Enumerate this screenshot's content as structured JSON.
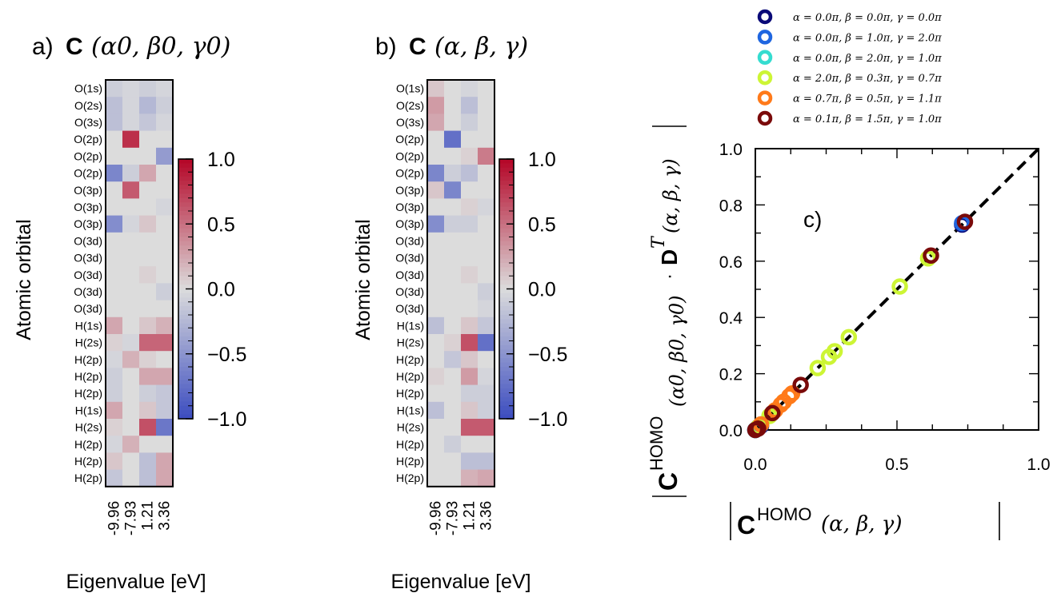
{
  "chart_data": [
    {
      "type": "heatmap",
      "panel_label": "a)",
      "title_bold": "C",
      "title_math": "(α0, β0, γ0)",
      "ylabel": "Atomic orbital",
      "xlabel": "Eigenvalue [eV]",
      "x_categories": [
        "-9.96",
        "-7.93",
        "1.21",
        "3.36"
      ],
      "y_categories": [
        "O(1s)",
        "O(2s)",
        "O(3s)",
        "O(2p)",
        "O(2p)",
        "O(2p)",
        "O(3p)",
        "O(3p)",
        "O(3p)",
        "O(3d)",
        "O(3d)",
        "O(3d)",
        "O(3d)",
        "O(3d)",
        "H(1s)",
        "H(2s)",
        "H(2p)",
        "H(2p)",
        "H(2p)",
        "H(1s)",
        "H(2s)",
        "H(2p)",
        "H(2p)",
        "H(2p)"
      ],
      "values": [
        [
          -0.1,
          -0.05,
          -0.1,
          -0.05
        ],
        [
          -0.2,
          -0.05,
          -0.25,
          -0.1
        ],
        [
          -0.2,
          -0.05,
          -0.15,
          -0.05
        ],
        [
          0.0,
          0.8,
          0.0,
          0.0
        ],
        [
          0.0,
          0.0,
          0.0,
          -0.45
        ],
        [
          -0.6,
          -0.1,
          0.25,
          0.0
        ],
        [
          0.0,
          0.6,
          0.0,
          0.0
        ],
        [
          0.0,
          0.0,
          0.0,
          -0.05
        ],
        [
          -0.55,
          -0.05,
          0.1,
          0.0
        ],
        [
          0.0,
          0.0,
          0.0,
          0.0
        ],
        [
          0.0,
          0.0,
          0.0,
          0.0
        ],
        [
          0.0,
          0.0,
          0.05,
          0.0
        ],
        [
          0.0,
          0.0,
          0.0,
          -0.1
        ],
        [
          0.0,
          0.0,
          0.0,
          0.0
        ],
        [
          0.25,
          0.0,
          0.1,
          0.2
        ],
        [
          0.05,
          -0.05,
          0.55,
          0.55
        ],
        [
          -0.05,
          0.2,
          0.05,
          0.0
        ],
        [
          -0.1,
          0.0,
          0.25,
          0.25
        ],
        [
          -0.1,
          0.0,
          -0.1,
          -0.15
        ],
        [
          0.25,
          0.0,
          0.1,
          -0.15
        ],
        [
          0.05,
          0.0,
          0.65,
          -0.7
        ],
        [
          -0.05,
          0.2,
          0.0,
          0.0
        ],
        [
          0.1,
          0.0,
          -0.2,
          0.25
        ],
        [
          -0.15,
          0.0,
          -0.2,
          0.25
        ]
      ],
      "colorbar": {
        "range": [
          -1.0,
          1.0
        ],
        "ticks": [
          "1.0",
          "0.5",
          "0.0",
          "−0.5",
          "−1.0"
        ]
      }
    },
    {
      "type": "heatmap",
      "panel_label": "b)",
      "title_bold": "C",
      "title_math": "(α, β, γ)",
      "ylabel": "Atomic orbital",
      "xlabel": "Eigenvalue [eV]",
      "x_categories": [
        "-9.96",
        "-7.93",
        "1.21",
        "3.36"
      ],
      "y_categories": [
        "O(1s)",
        "O(2s)",
        "O(3s)",
        "O(2p)",
        "O(2p)",
        "O(2p)",
        "O(3p)",
        "O(3p)",
        "O(3p)",
        "O(3d)",
        "O(3d)",
        "O(3d)",
        "O(3d)",
        "O(3d)",
        "H(1s)",
        "H(2s)",
        "H(2p)",
        "H(2p)",
        "H(2p)",
        "H(1s)",
        "H(2s)",
        "H(2p)",
        "H(2p)",
        "H(2p)"
      ],
      "values": [
        [
          0.1,
          0.0,
          -0.05,
          0.0
        ],
        [
          0.3,
          0.0,
          -0.2,
          0.0
        ],
        [
          0.25,
          0.0,
          -0.1,
          0.0
        ],
        [
          0.0,
          -0.75,
          0.0,
          0.0
        ],
        [
          0.0,
          0.0,
          0.05,
          0.45
        ],
        [
          -0.6,
          -0.1,
          -0.2,
          0.0
        ],
        [
          0.1,
          -0.6,
          0.0,
          0.0
        ],
        [
          0.0,
          0.0,
          0.05,
          -0.05
        ],
        [
          -0.55,
          -0.1,
          -0.1,
          0.0
        ],
        [
          0.0,
          0.0,
          0.0,
          0.0
        ],
        [
          0.0,
          0.0,
          0.0,
          0.0
        ],
        [
          0.0,
          0.0,
          0.05,
          0.0
        ],
        [
          0.0,
          0.0,
          0.0,
          -0.1
        ],
        [
          0.0,
          0.0,
          0.0,
          -0.05
        ],
        [
          -0.2,
          0.0,
          0.1,
          -0.15
        ],
        [
          0.0,
          0.05,
          0.65,
          -0.75
        ],
        [
          0.0,
          -0.15,
          0.1,
          0.0
        ],
        [
          0.05,
          0.0,
          0.3,
          -0.05
        ],
        [
          0.0,
          0.0,
          -0.1,
          -0.1
        ],
        [
          -0.2,
          0.0,
          0.1,
          -0.1
        ],
        [
          0.0,
          0.0,
          0.6,
          0.6
        ],
        [
          0.0,
          -0.1,
          0.0,
          0.0
        ],
        [
          0.0,
          0.0,
          -0.2,
          -0.2
        ],
        [
          0.0,
          0.0,
          0.2,
          0.25
        ]
      ],
      "colorbar": {
        "range": [
          -1.0,
          1.0
        ],
        "ticks": [
          "1.0",
          "0.5",
          "0.0",
          "−0.5",
          "−1.0"
        ]
      }
    },
    {
      "type": "scatter",
      "panel_label": "c)",
      "xlabel_bold": "C",
      "xlabel_sup": "HOMO",
      "xlabel_math": "(α, β, γ)",
      "ylabel_bold": "C",
      "ylabel_sup": "HOMO",
      "ylabel_math": "(α0, β0, γ0)",
      "ylabel_dot": "·",
      "ylabel_bold2": "D",
      "ylabel_sup2": "T",
      "ylabel_math2": "(α, β, γ)",
      "xlim": [
        0,
        1.0
      ],
      "ylim": [
        0,
        1.0
      ],
      "xticks": [
        "0.0",
        "0.5",
        "1.0"
      ],
      "yticks": [
        "0.0",
        "0.2",
        "0.4",
        "0.6",
        "0.8",
        "1.0"
      ],
      "diagonal_line": {
        "style": "dashed",
        "color": "#000000",
        "from": [
          0,
          0
        ],
        "to": [
          1.0,
          1.0
        ]
      },
      "series": [
        {
          "name": "α = 0.0π, β = 0.0π, γ = 0.0π",
          "color": "#0a0a78",
          "points": [
            [
              0.0,
              0.0
            ],
            [
              0.01,
              0.01
            ],
            [
              0.02,
              0.015
            ],
            [
              0.73,
              0.73
            ]
          ]
        },
        {
          "name": "α = 0.0π, β = 1.0π, γ = 2.0π",
          "color": "#1f66e0",
          "points": [
            [
              0.0,
              0.0
            ],
            [
              0.015,
              0.012
            ],
            [
              0.73,
              0.735
            ]
          ]
        },
        {
          "name": "α = 0.0π, β = 2.0π, γ = 1.0π",
          "color": "#35dcd0",
          "points": [
            [
              0.0,
              0.0
            ],
            [
              0.02,
              0.02
            ]
          ]
        },
        {
          "name": "α = 2.0π, β = 0.3π, γ = 0.7π",
          "color": "#cdf535",
          "points": [
            [
              0.01,
              0.01
            ],
            [
              0.05,
              0.05
            ],
            [
              0.1,
              0.1
            ],
            [
              0.22,
              0.22
            ],
            [
              0.26,
              0.26
            ],
            [
              0.28,
              0.28
            ],
            [
              0.33,
              0.33
            ],
            [
              0.51,
              0.51
            ],
            [
              0.61,
              0.61
            ]
          ]
        },
        {
          "name": "α = 0.7π, β = 0.5π, γ = 1.1π",
          "color": "#ff7a1a",
          "points": [
            [
              0.02,
              0.02
            ],
            [
              0.07,
              0.07
            ],
            [
              0.09,
              0.09
            ],
            [
              0.1,
              0.1
            ],
            [
              0.12,
              0.12
            ],
            [
              0.13,
              0.13
            ]
          ]
        },
        {
          "name": "α = 0.1π, β = 1.5π, γ = 1.0π",
          "color": "#7a0a0a",
          "points": [
            [
              0.0,
              0.0
            ],
            [
              0.01,
              0.005
            ],
            [
              0.06,
              0.06
            ],
            [
              0.16,
              0.16
            ],
            [
              0.62,
              0.62
            ],
            [
              0.74,
              0.74
            ]
          ]
        }
      ]
    }
  ],
  "colors": {
    "neutral": "#dcdcdc",
    "positive": "#b40426",
    "negative": "#3b4cc0"
  }
}
